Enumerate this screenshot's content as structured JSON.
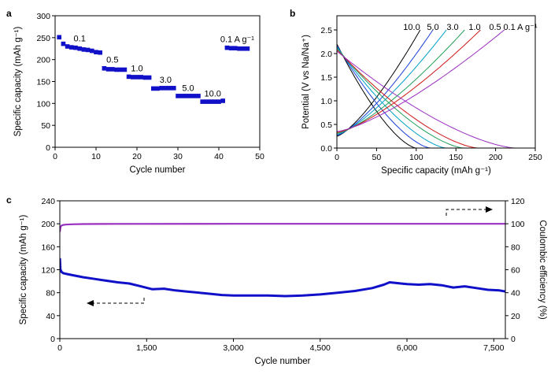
{
  "chart_data": [
    {
      "panel": "a",
      "type": "scatter",
      "xlabel": "Cycle number",
      "ylabel": "Specific capacity (mAh g⁻¹)",
      "xlim": [
        0,
        50
      ],
      "ylim": [
        0,
        300
      ],
      "xticks": [
        0,
        10,
        20,
        30,
        40,
        50
      ],
      "yticks": [
        0,
        50,
        100,
        150,
        200,
        250,
        300
      ],
      "marker_color": "#1010c8",
      "points": [
        [
          1,
          251
        ],
        [
          2,
          236
        ],
        [
          3,
          230
        ],
        [
          4,
          228
        ],
        [
          5,
          227
        ],
        [
          6,
          225
        ],
        [
          7,
          223
        ],
        [
          8,
          222
        ],
        [
          9,
          220
        ],
        [
          10,
          217
        ],
        [
          11,
          216
        ],
        [
          12,
          180
        ],
        [
          13,
          178
        ],
        [
          14,
          178
        ],
        [
          15,
          177
        ],
        [
          16,
          177
        ],
        [
          17,
          177
        ],
        [
          18,
          161
        ],
        [
          19,
          160
        ],
        [
          20,
          160
        ],
        [
          21,
          160
        ],
        [
          22,
          159
        ],
        [
          23,
          159
        ],
        [
          24,
          134
        ],
        [
          25,
          134
        ],
        [
          26,
          135
        ],
        [
          27,
          135
        ],
        [
          28,
          135
        ],
        [
          29,
          135
        ],
        [
          30,
          117
        ],
        [
          31,
          117
        ],
        [
          32,
          117
        ],
        [
          33,
          117
        ],
        [
          34,
          117
        ],
        [
          35,
          117
        ],
        [
          36,
          104
        ],
        [
          37,
          104
        ],
        [
          38,
          104
        ],
        [
          39,
          104
        ],
        [
          40,
          104
        ],
        [
          41,
          106
        ],
        [
          42,
          227
        ],
        [
          43,
          226
        ],
        [
          44,
          226
        ],
        [
          45,
          225
        ],
        [
          46,
          225
        ],
        [
          47,
          225
        ]
      ],
      "annotations": [
        {
          "text": "0.1",
          "x": 6,
          "y": 242
        },
        {
          "text": "0.5",
          "x": 14,
          "y": 193
        },
        {
          "text": "1.0",
          "x": 20,
          "y": 173
        },
        {
          "text": "3.0",
          "x": 27,
          "y": 147
        },
        {
          "text": "5.0",
          "x": 32.5,
          "y": 128
        },
        {
          "text": "10.0",
          "x": 38.5,
          "y": 116
        },
        {
          "text": "0.1 A g⁻¹",
          "x": 44.5,
          "y": 240
        }
      ]
    },
    {
      "panel": "b",
      "type": "line",
      "xlabel": "Specific capacity (mAh g⁻¹)",
      "ylabel": "Potential (V vs Na/Na⁺)",
      "xlim": [
        0,
        250
      ],
      "ylim": [
        0,
        2.8
      ],
      "xticks": [
        0,
        50,
        100,
        150,
        200,
        250
      ],
      "yticks": [
        0.0,
        0.5,
        1.0,
        1.5,
        2.0,
        2.5
      ],
      "series": [
        {
          "name": "10.0",
          "color": "#000000",
          "discharge_capacity": 100,
          "charge_capacity": 105
        },
        {
          "name": "5.0",
          "color": "#1a3fd8",
          "discharge_capacity": 118,
          "charge_capacity": 121
        },
        {
          "name": "3.0",
          "color": "#00a0c8",
          "discharge_capacity": 138,
          "charge_capacity": 138
        },
        {
          "name": "1.0",
          "color": "#1f9f5a",
          "discharge_capacity": 160,
          "charge_capacity": 161
        },
        {
          "name": "0.5",
          "color": "#d01818",
          "discharge_capacity": 178,
          "charge_capacity": 181
        },
        {
          "name": "0.1 A g⁻¹",
          "color": "#9a2fc0",
          "discharge_capacity": 225,
          "charge_capacity": 211
        }
      ]
    },
    {
      "panel": "c",
      "type": "line",
      "xlabel": "Cycle number",
      "ylabel": "Specific capacity (mAh g⁻¹)",
      "y2label": "Coulombic efficiency (%)",
      "xlim": [
        0,
        7700
      ],
      "ylim": [
        0,
        240
      ],
      "y2lim": [
        0,
        120
      ],
      "xticks": [
        "0",
        "1,500",
        "3,000",
        "4,500",
        "6,000",
        "7,500"
      ],
      "xtick_values": [
        0,
        1500,
        3000,
        4500,
        6000,
        7500
      ],
      "yticks": [
        0,
        40,
        80,
        120,
        160,
        200,
        240
      ],
      "y2ticks": [
        0,
        20,
        40,
        60,
        80,
        100,
        120
      ],
      "capacity_color": "#1010c8",
      "efficiency_color": "#9a2fc0",
      "capacity": {
        "x": [
          1,
          10,
          30,
          60,
          100,
          200,
          400,
          600,
          800,
          1000,
          1200,
          1400,
          1600,
          1800,
          2000,
          2200,
          2500,
          2800,
          3000,
          3300,
          3600,
          3900,
          4200,
          4500,
          4800,
          5100,
          5400,
          5600,
          5700,
          5800,
          6000,
          6200,
          6400,
          6600,
          6800,
          7000,
          7200,
          7400,
          7600,
          7700
        ],
        "y": [
          140,
          121,
          116,
          114,
          113,
          111,
          107,
          104,
          101,
          98,
          96,
          91,
          86,
          87,
          84,
          82,
          79,
          76,
          75,
          75,
          75,
          74,
          75,
          77,
          80,
          83,
          88,
          94,
          98,
          97,
          95,
          94,
          95,
          93,
          89,
          91,
          88,
          85,
          84,
          82
        ]
      },
      "efficiency": {
        "x": [
          1,
          5,
          15,
          30,
          60,
          100,
          200,
          400,
          1000,
          3000,
          6000,
          7700
        ],
        "y": [
          93,
          95,
          97.5,
          98.5,
          99,
          99.3,
          99.6,
          99.8,
          99.9,
          100,
          100,
          100
        ]
      }
    }
  ]
}
